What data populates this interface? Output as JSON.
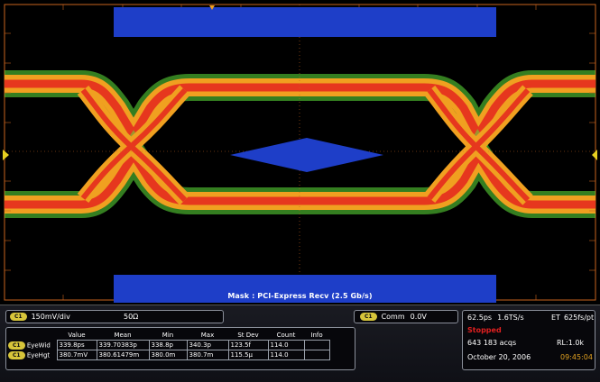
{
  "mask_label": "Mask : PCI-Express Recv (2.5 Gb/s)",
  "channel": {
    "badge": "C1",
    "scale": "150mV/div",
    "impedance": "50Ω"
  },
  "comm": {
    "badge": "C1",
    "label": "Comm",
    "value": "0.0V"
  },
  "acquisition": {
    "timebase": "62.5ps",
    "sample_rate": "1.6TS/s",
    "et": "ET",
    "et_value": "625fs/pt",
    "state": "Stopped",
    "acqs": "643 183 acqs",
    "record_length": "RL:1.0k",
    "date": "October 20, 2006",
    "time": "09:45:04"
  },
  "measurements": {
    "headers": [
      "Value",
      "Mean",
      "Min",
      "Max",
      "St Dev",
      "Count",
      "Info"
    ],
    "rows": [
      {
        "badge": "C1",
        "name": "EyeWid",
        "cells": [
          "339.8ps",
          "339.70383p",
          "338.8p",
          "340.3p",
          "123.5f",
          "114.0",
          ""
        ]
      },
      {
        "badge": "C1",
        "name": "EyeHgt",
        "cells": [
          "380.7mV",
          "380.61479m",
          "380.0m",
          "380.7m",
          "115.5µ",
          "114.0",
          ""
        ]
      }
    ]
  },
  "colors": {
    "mask_blue": "#1e3ec8",
    "grid_orange": "#c8641e",
    "trace_hot": "#e6371e",
    "trace_warm": "#f0a020",
    "trace_cool": "#c8e628",
    "badge_yellow": "#d7c53a"
  }
}
